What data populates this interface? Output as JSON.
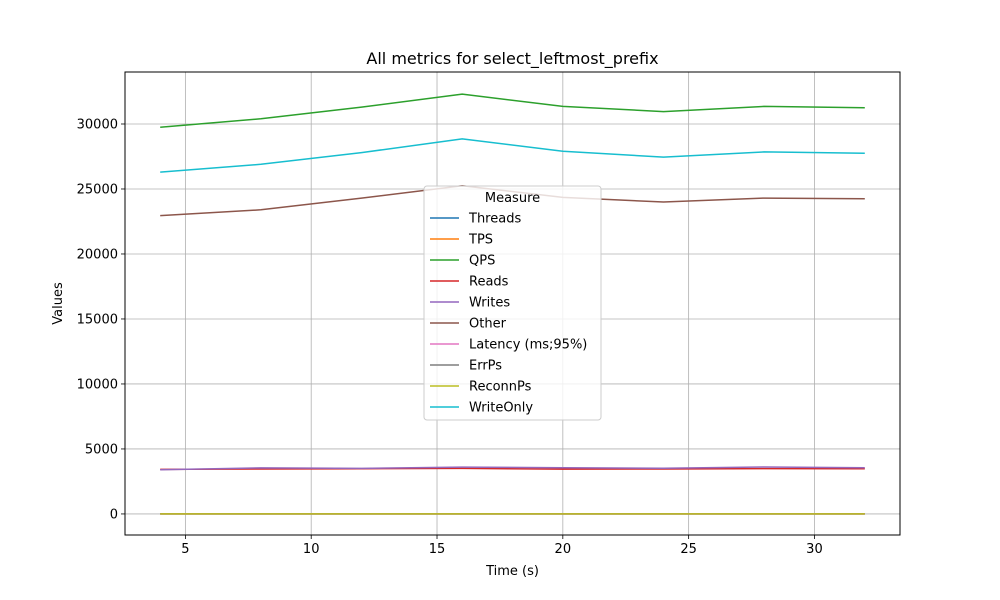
{
  "chart_data": {
    "type": "line",
    "title": "All metrics for select_leftmost_prefix",
    "xlabel": "Time (s)",
    "ylabel": "Values",
    "xlim": [
      2.6,
      33.4
    ],
    "ylim": [
      -1620,
      34000
    ],
    "xticks": [
      5,
      10,
      15,
      20,
      25,
      30
    ],
    "yticks": [
      0,
      5000,
      10000,
      15000,
      20000,
      25000,
      30000
    ],
    "grid": true,
    "legend": {
      "title": "Measure",
      "placement": "center"
    },
    "x": [
      4,
      8,
      12,
      16,
      20,
      24,
      28,
      32
    ],
    "series": [
      {
        "name": "Threads",
        "color": "#1f77b4",
        "values": [
          4,
          4,
          4,
          4,
          4,
          4,
          4,
          4
        ]
      },
      {
        "name": "TPS",
        "color": "#ff7f0e",
        "values": [
          1,
          1,
          1,
          1,
          1,
          1,
          1,
          1
        ]
      },
      {
        "name": "QPS",
        "color": "#2ca02c",
        "values": [
          29750,
          30400,
          31300,
          32300,
          31350,
          30950,
          31350,
          31250
        ]
      },
      {
        "name": "Reads",
        "color": "#d62728",
        "values": [
          3430,
          3460,
          3480,
          3500,
          3450,
          3460,
          3490,
          3480
        ]
      },
      {
        "name": "Writes",
        "color": "#9467bd",
        "values": [
          3400,
          3540,
          3500,
          3600,
          3560,
          3510,
          3610,
          3560
        ]
      },
      {
        "name": "Other",
        "color": "#8c564b",
        "values": [
          22950,
          23400,
          24300,
          25250,
          24350,
          24000,
          24300,
          24250
        ]
      },
      {
        "name": "Latency (ms;95%)",
        "color": "#e377c2",
        "values": [
          5,
          5,
          5,
          5,
          5,
          5,
          5,
          5
        ]
      },
      {
        "name": "ErrPs",
        "color": "#7f7f7f",
        "values": [
          0,
          0,
          0,
          0,
          0,
          0,
          0,
          0
        ]
      },
      {
        "name": "ReconnPs",
        "color": "#bcbd22",
        "values": [
          0,
          0,
          0,
          0,
          0,
          0,
          0,
          0
        ]
      },
      {
        "name": "WriteOnly",
        "color": "#17becf",
        "values": [
          26300,
          26900,
          27800,
          28850,
          27900,
          27450,
          27850,
          27750
        ]
      }
    ]
  }
}
